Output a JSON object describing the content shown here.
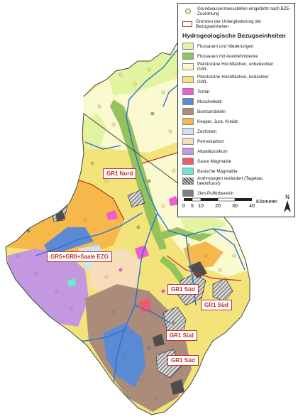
{
  "legend": {
    "stations_label": "Grundwassermessstellen eingefärbt nach BZE-Zuordnung",
    "boundary_label": "Grenzen der Untergliederung der Bezugseinheiten",
    "title": "Hydrogeologische Bezugseinheiten",
    "units": [
      {
        "label": "Flussauen und Niederungen",
        "color": "#e3f4a0"
      },
      {
        "label": "Flussauen mit Auenlehmdecke",
        "color": "#93c35a"
      },
      {
        "label": "Pleistozäne Hochflächen, unbedeckter GWL",
        "color": "#fbf9cf"
      },
      {
        "label": "Pleistozäne Hochflächen, bedeckter GWL",
        "color": "#f2e37a"
      },
      {
        "label": "Tertiär",
        "color": "#f05ad2"
      },
      {
        "label": "Muschelkalk",
        "color": "#5b8ad4"
      },
      {
        "label": "Buntsandstein",
        "color": "#ab8b7a"
      },
      {
        "label": "Keuper, Jura, Kreide",
        "color": "#f6b74b"
      },
      {
        "label": "Zechstein",
        "color": "#cfe1f6"
      },
      {
        "label": "Permokarbon",
        "color": "#f7ddb9"
      },
      {
        "label": "Altpaläozoikum",
        "color": "#c497e1"
      },
      {
        "label": "Saure Magmatite",
        "color": "#ef5b6e"
      },
      {
        "label": "Basische Magmatite",
        "color": "#6ee8cf"
      },
      {
        "label": "Anthropogen verändert (Tagebau beeinflusst)",
        "color": "#9a9a9a"
      },
      {
        "label": "2km-Pufferbereich",
        "color": "#7d7d7d"
      }
    ],
    "scale": {
      "ticks": [
        "0",
        "5",
        "10",
        "20",
        "30",
        "40"
      ],
      "unit": "Kilometer"
    },
    "north": "N"
  },
  "region_labels": [
    "GR1 Nord",
    "GR5+GR8+Saale EZG",
    "GR1 Süd",
    "GR1 Süd",
    "GR1 Süd",
    "GR1 Süd"
  ],
  "colors": {
    "river": "#2a6fd6",
    "boundary": "#c0302a",
    "outline": "#444444"
  }
}
